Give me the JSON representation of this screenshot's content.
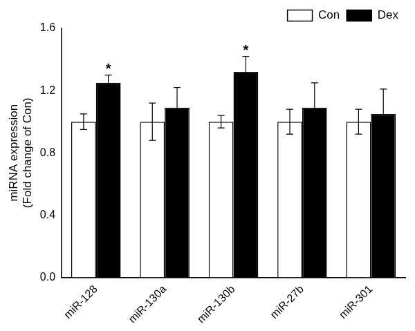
{
  "chart_data": {
    "type": "bar",
    "y_label": [
      "miRNA expression",
      "(Fold change of Con)"
    ],
    "categories": [
      "miR-128",
      "miR-130a",
      "miR-130b",
      "miR-27b",
      "miR-301"
    ],
    "series": [
      {
        "name": "Con",
        "color": "#ffffff",
        "values": [
          1.0,
          1.0,
          1.0,
          1.0,
          1.0
        ],
        "errors": [
          0.05,
          0.12,
          0.04,
          0.08,
          0.08
        ]
      },
      {
        "name": "Dex",
        "color": "#000000",
        "values": [
          1.25,
          1.09,
          1.32,
          1.09,
          1.05
        ],
        "errors": [
          0.05,
          0.13,
          0.1,
          0.16,
          0.16
        ]
      }
    ],
    "annotations": [
      {
        "text": "*",
        "category": "miR-128",
        "series": "Dex"
      },
      {
        "text": "*",
        "category": "miR-130b",
        "series": "Dex"
      }
    ],
    "ylim": [
      0,
      1.6
    ],
    "yticks": [
      {
        "value": 0,
        "label": "0.0"
      },
      0.4,
      0.8,
      1.2,
      1.6
    ],
    "grid": false,
    "legend": "top-right"
  }
}
